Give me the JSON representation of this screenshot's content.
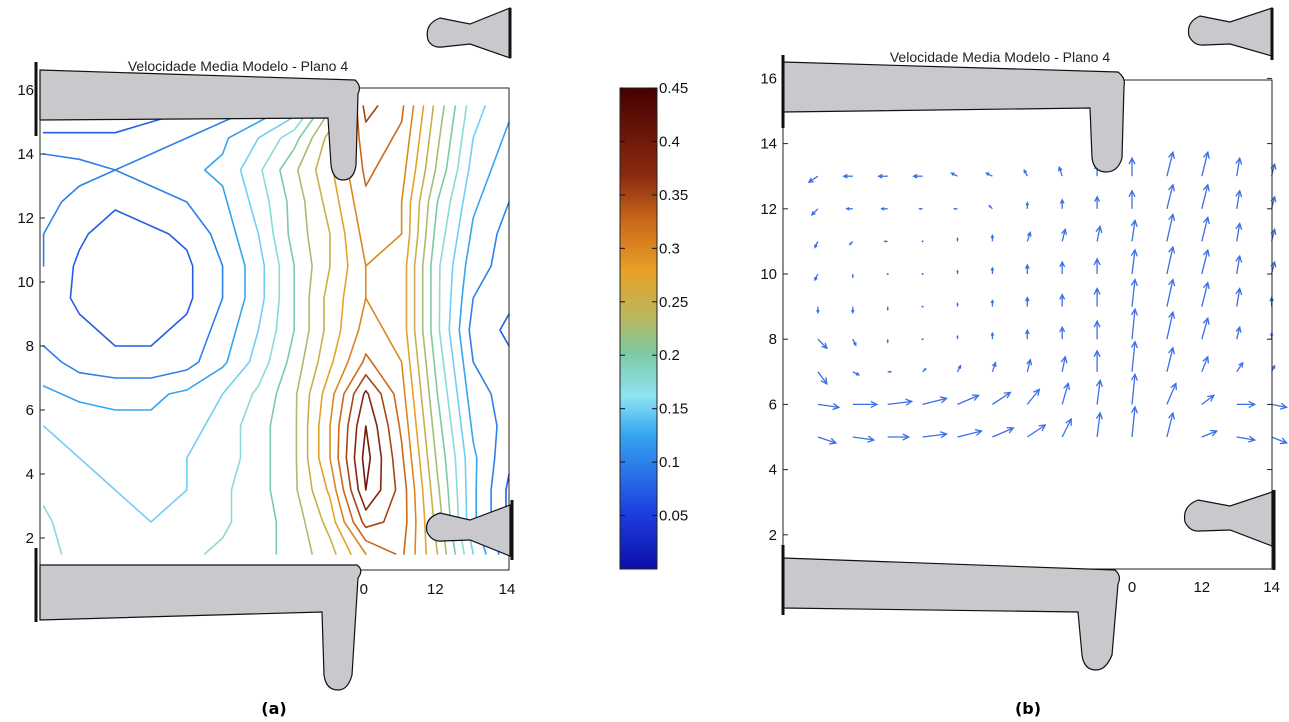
{
  "chart_data": [
    {
      "type": "contour",
      "panel_label": "(a)",
      "title": "Velocidade Media Modelo - Plano  4",
      "xlim": [
        0,
        14
      ],
      "ylim": [
        1,
        16
      ],
      "x_tick_labels": [
        "0",
        "12",
        "14"
      ],
      "y_tick_labels": [
        "2",
        "4",
        "6",
        "8",
        "10",
        "12",
        "14",
        "16"
      ],
      "colormap": "jet",
      "colorbar": {
        "range": [
          0,
          0.45
        ],
        "tick_labels": [
          "0.05",
          "0.1",
          "0.15",
          "0.2",
          "0.25",
          "0.3",
          "0.35",
          "0.4",
          "0.45"
        ]
      },
      "contour_levels": [
        0.05,
        0.075,
        0.1,
        0.125,
        0.15,
        0.175,
        0.2,
        0.225,
        0.25,
        0.275,
        0.3,
        0.325,
        0.35,
        0.375,
        0.4
      ],
      "field": {
        "x": [
          1,
          2,
          3,
          4,
          5,
          6,
          7,
          8,
          9,
          10,
          11,
          12,
          13,
          14
        ],
        "y": [
          1.5,
          2.5,
          3.5,
          4.5,
          5.5,
          6.5,
          7.5,
          8.5,
          9.5,
          10.5,
          11.5,
          12.5,
          13.5,
          14.5,
          15.5
        ],
        "z": [
          [
            0.18,
            0.17,
            0.16,
            0.16,
            0.17,
            0.18,
            0.19,
            0.21,
            0.24,
            0.3,
            0.33,
            0.25,
            0.15,
            0.08
          ],
          [
            0.18,
            0.16,
            0.15,
            0.15,
            0.16,
            0.17,
            0.19,
            0.21,
            0.26,
            0.36,
            0.34,
            0.24,
            0.13,
            0.07
          ],
          [
            0.17,
            0.16,
            0.15,
            0.14,
            0.15,
            0.17,
            0.19,
            0.22,
            0.28,
            0.4,
            0.34,
            0.23,
            0.13,
            0.07
          ],
          [
            0.16,
            0.15,
            0.14,
            0.14,
            0.15,
            0.16,
            0.19,
            0.22,
            0.3,
            0.41,
            0.33,
            0.22,
            0.13,
            0.08
          ],
          [
            0.15,
            0.14,
            0.13,
            0.13,
            0.14,
            0.16,
            0.19,
            0.22,
            0.3,
            0.4,
            0.32,
            0.21,
            0.12,
            0.09
          ],
          [
            0.13,
            0.12,
            0.12,
            0.12,
            0.13,
            0.15,
            0.18,
            0.22,
            0.29,
            0.38,
            0.31,
            0.2,
            0.11,
            0.09
          ],
          [
            0.11,
            0.09,
            0.08,
            0.08,
            0.09,
            0.12,
            0.16,
            0.21,
            0.27,
            0.33,
            0.3,
            0.19,
            0.1,
            0.08
          ],
          [
            0.09,
            0.08,
            0.07,
            0.07,
            0.08,
            0.11,
            0.15,
            0.2,
            0.26,
            0.31,
            0.29,
            0.18,
            0.09,
            0.07
          ],
          [
            0.09,
            0.07,
            0.06,
            0.06,
            0.07,
            0.1,
            0.14,
            0.2,
            0.26,
            0.3,
            0.29,
            0.18,
            0.1,
            0.08
          ],
          [
            0.1,
            0.07,
            0.06,
            0.06,
            0.07,
            0.1,
            0.14,
            0.2,
            0.25,
            0.3,
            0.29,
            0.18,
            0.11,
            0.09
          ],
          [
            0.1,
            0.08,
            0.06,
            0.07,
            0.08,
            0.11,
            0.15,
            0.21,
            0.25,
            0.31,
            0.3,
            0.19,
            0.12,
            0.09
          ],
          [
            0.11,
            0.09,
            0.08,
            0.09,
            0.1,
            0.12,
            0.16,
            0.21,
            0.26,
            0.32,
            0.3,
            0.2,
            0.13,
            0.1
          ],
          [
            0.12,
            0.11,
            0.1,
            0.11,
            0.12,
            0.13,
            0.17,
            0.22,
            0.27,
            0.33,
            0.31,
            0.22,
            0.14,
            0.11
          ],
          [
            0.08,
            0.08,
            0.08,
            0.09,
            0.1,
            0.12,
            0.15,
            0.19,
            0.26,
            0.34,
            0.32,
            0.23,
            0.15,
            0.12
          ],
          [
            0.05,
            0.05,
            0.05,
            0.06,
            0.07,
            0.08,
            0.1,
            0.13,
            0.22,
            0.36,
            0.33,
            0.24,
            0.16,
            0.13
          ]
        ]
      }
    },
    {
      "type": "quiver",
      "panel_label": "(b)",
      "title": "Velocidade Media Modelo - Plano  4",
      "xlim": [
        0,
        14
      ],
      "ylim": [
        1,
        16
      ],
      "x_tick_labels": [
        "0",
        "12",
        "14"
      ],
      "y_tick_labels": [
        "2",
        "4",
        "6",
        "8",
        "10",
        "12",
        "14",
        "16"
      ],
      "arrow_color": "#3a6fe6",
      "vectors": [
        {
          "x": 1,
          "y": 5,
          "u": 0.06,
          "v": -0.02
        },
        {
          "x": 2,
          "y": 5,
          "u": 0.07,
          "v": -0.01
        },
        {
          "x": 3,
          "y": 5,
          "u": 0.07,
          "v": 0.0
        },
        {
          "x": 4,
          "y": 5,
          "u": 0.08,
          "v": 0.01
        },
        {
          "x": 5,
          "y": 5,
          "u": 0.08,
          "v": 0.02
        },
        {
          "x": 6,
          "y": 5,
          "u": 0.07,
          "v": 0.03
        },
        {
          "x": 7,
          "y": 5,
          "u": 0.06,
          "v": 0.04
        },
        {
          "x": 8,
          "y": 5,
          "u": 0.03,
          "v": 0.06
        },
        {
          "x": 9,
          "y": 5,
          "u": 0.01,
          "v": 0.08
        },
        {
          "x": 10,
          "y": 5,
          "u": 0.01,
          "v": 0.1
        },
        {
          "x": 11,
          "y": 5,
          "u": 0.02,
          "v": 0.08
        },
        {
          "x": 12,
          "y": 5,
          "u": 0.05,
          "v": 0.02
        },
        {
          "x": 13,
          "y": 5,
          "u": 0.06,
          "v": -0.01
        },
        {
          "x": 14,
          "y": 5,
          "u": 0.05,
          "v": -0.02
        },
        {
          "x": 1,
          "y": 6,
          "u": 0.07,
          "v": -0.01
        },
        {
          "x": 2,
          "y": 6,
          "u": 0.08,
          "v": 0.0
        },
        {
          "x": 3,
          "y": 6,
          "u": 0.08,
          "v": 0.01
        },
        {
          "x": 4,
          "y": 6,
          "u": 0.08,
          "v": 0.02
        },
        {
          "x": 5,
          "y": 6,
          "u": 0.07,
          "v": 0.03
        },
        {
          "x": 6,
          "y": 6,
          "u": 0.06,
          "v": 0.04
        },
        {
          "x": 7,
          "y": 6,
          "u": 0.04,
          "v": 0.05
        },
        {
          "x": 8,
          "y": 6,
          "u": 0.02,
          "v": 0.07
        },
        {
          "x": 9,
          "y": 6,
          "u": 0.01,
          "v": 0.08
        },
        {
          "x": 10,
          "y": 6,
          "u": 0.01,
          "v": 0.1
        },
        {
          "x": 11,
          "y": 6,
          "u": 0.03,
          "v": 0.07
        },
        {
          "x": 12,
          "y": 6,
          "u": 0.04,
          "v": 0.03
        },
        {
          "x": 13,
          "y": 6,
          "u": 0.06,
          "v": 0.0
        },
        {
          "x": 14,
          "y": 6,
          "u": 0.05,
          "v": -0.01
        },
        {
          "x": 1,
          "y": 7,
          "u": 0.03,
          "v": -0.04
        },
        {
          "x": 2,
          "y": 7,
          "u": 0.02,
          "v": -0.01
        },
        {
          "x": 3,
          "y": 7,
          "u": 0.01,
          "v": 0.0
        },
        {
          "x": 4,
          "y": 7,
          "u": 0.01,
          "v": 0.01
        },
        {
          "x": 5,
          "y": 7,
          "u": 0.01,
          "v": 0.02
        },
        {
          "x": 6,
          "y": 7,
          "u": 0.01,
          "v": 0.03
        },
        {
          "x": 7,
          "y": 7,
          "u": 0.01,
          "v": 0.04
        },
        {
          "x": 8,
          "y": 7,
          "u": 0.01,
          "v": 0.05
        },
        {
          "x": 9,
          "y": 7,
          "u": 0.0,
          "v": 0.07
        },
        {
          "x": 10,
          "y": 7,
          "u": 0.01,
          "v": 0.1
        },
        {
          "x": 11,
          "y": 7,
          "u": 0.02,
          "v": 0.08
        },
        {
          "x": 12,
          "y": 7,
          "u": 0.02,
          "v": 0.05
        },
        {
          "x": 13,
          "y": 7,
          "u": 0.02,
          "v": 0.03
        },
        {
          "x": 14,
          "y": 7,
          "u": 0.01,
          "v": 0.02
        },
        {
          "x": 1,
          "y": 8,
          "u": 0.03,
          "v": -0.03
        },
        {
          "x": 2,
          "y": 8,
          "u": 0.01,
          "v": -0.02
        },
        {
          "x": 3,
          "y": 8,
          "u": 0.0,
          "v": -0.01
        },
        {
          "x": 4,
          "y": 8,
          "u": 0.0,
          "v": 0.0
        },
        {
          "x": 5,
          "y": 8,
          "u": 0.0,
          "v": 0.01
        },
        {
          "x": 6,
          "y": 8,
          "u": 0.0,
          "v": 0.02
        },
        {
          "x": 7,
          "y": 8,
          "u": 0.0,
          "v": 0.03
        },
        {
          "x": 8,
          "y": 8,
          "u": 0.0,
          "v": 0.04
        },
        {
          "x": 9,
          "y": 8,
          "u": 0.0,
          "v": 0.06
        },
        {
          "x": 10,
          "y": 8,
          "u": 0.01,
          "v": 0.1
        },
        {
          "x": 11,
          "y": 8,
          "u": 0.02,
          "v": 0.09
        },
        {
          "x": 12,
          "y": 8,
          "u": 0.02,
          "v": 0.07
        },
        {
          "x": 13,
          "y": 8,
          "u": 0.01,
          "v": 0.04
        },
        {
          "x": 14,
          "y": 8,
          "u": 0.0,
          "v": 0.02
        },
        {
          "x": 1,
          "y": 9,
          "u": 0.0,
          "v": -0.02
        },
        {
          "x": 2,
          "y": 9,
          "u": 0.0,
          "v": -0.02
        },
        {
          "x": 3,
          "y": 9,
          "u": 0.0,
          "v": -0.01
        },
        {
          "x": 4,
          "y": 9,
          "u": 0.0,
          "v": 0.0
        },
        {
          "x": 5,
          "y": 9,
          "u": 0.0,
          "v": 0.01
        },
        {
          "x": 6,
          "y": 9,
          "u": 0.0,
          "v": 0.02
        },
        {
          "x": 7,
          "y": 9,
          "u": 0.0,
          "v": 0.03
        },
        {
          "x": 8,
          "y": 9,
          "u": 0.0,
          "v": 0.04
        },
        {
          "x": 9,
          "y": 9,
          "u": 0.0,
          "v": 0.06
        },
        {
          "x": 10,
          "y": 9,
          "u": 0.01,
          "v": 0.09
        },
        {
          "x": 11,
          "y": 9,
          "u": 0.02,
          "v": 0.09
        },
        {
          "x": 12,
          "y": 9,
          "u": 0.02,
          "v": 0.08
        },
        {
          "x": 13,
          "y": 9,
          "u": 0.01,
          "v": 0.06
        },
        {
          "x": 14,
          "y": 9,
          "u": 0.0,
          "v": 0.03
        },
        {
          "x": 1,
          "y": 10,
          "u": -0.01,
          "v": -0.02
        },
        {
          "x": 2,
          "y": 10,
          "u": 0.0,
          "v": -0.01
        },
        {
          "x": 3,
          "y": 10,
          "u": 0.0,
          "v": 0.0
        },
        {
          "x": 4,
          "y": 10,
          "u": 0.0,
          "v": 0.0
        },
        {
          "x": 5,
          "y": 10,
          "u": 0.0,
          "v": 0.01
        },
        {
          "x": 6,
          "y": 10,
          "u": 0.0,
          "v": 0.02
        },
        {
          "x": 7,
          "y": 10,
          "u": 0.0,
          "v": 0.03
        },
        {
          "x": 8,
          "y": 10,
          "u": 0.0,
          "v": 0.04
        },
        {
          "x": 9,
          "y": 10,
          "u": 0.0,
          "v": 0.05
        },
        {
          "x": 10,
          "y": 10,
          "u": 0.01,
          "v": 0.08
        },
        {
          "x": 11,
          "y": 10,
          "u": 0.02,
          "v": 0.09
        },
        {
          "x": 12,
          "y": 10,
          "u": 0.02,
          "v": 0.08
        },
        {
          "x": 13,
          "y": 10,
          "u": 0.01,
          "v": 0.06
        },
        {
          "x": 14,
          "y": 10,
          "u": 0.01,
          "v": 0.04
        },
        {
          "x": 1,
          "y": 11,
          "u": -0.01,
          "v": -0.02
        },
        {
          "x": 2,
          "y": 11,
          "u": -0.01,
          "v": -0.01
        },
        {
          "x": 3,
          "y": 11,
          "u": -0.01,
          "v": 0.0
        },
        {
          "x": 4,
          "y": 11,
          "u": 0.0,
          "v": 0.0
        },
        {
          "x": 5,
          "y": 11,
          "u": 0.0,
          "v": 0.01
        },
        {
          "x": 6,
          "y": 11,
          "u": 0.0,
          "v": 0.02
        },
        {
          "x": 7,
          "y": 11,
          "u": 0.01,
          "v": 0.03
        },
        {
          "x": 8,
          "y": 11,
          "u": 0.01,
          "v": 0.04
        },
        {
          "x": 9,
          "y": 11,
          "u": 0.01,
          "v": 0.05
        },
        {
          "x": 10,
          "y": 11,
          "u": 0.01,
          "v": 0.07
        },
        {
          "x": 11,
          "y": 11,
          "u": 0.02,
          "v": 0.09
        },
        {
          "x": 12,
          "y": 11,
          "u": 0.02,
          "v": 0.08
        },
        {
          "x": 13,
          "y": 11,
          "u": 0.01,
          "v": 0.06
        },
        {
          "x": 14,
          "y": 11,
          "u": 0.01,
          "v": 0.04
        },
        {
          "x": 1,
          "y": 12,
          "u": -0.02,
          "v": -0.02
        },
        {
          "x": 2,
          "y": 12,
          "u": -0.02,
          "v": 0.0
        },
        {
          "x": 3,
          "y": 12,
          "u": -0.02,
          "v": 0.0
        },
        {
          "x": 4,
          "y": 12,
          "u": -0.01,
          "v": 0.0
        },
        {
          "x": 5,
          "y": 12,
          "u": -0.01,
          "v": 0.0
        },
        {
          "x": 6,
          "y": 12,
          "u": -0.01,
          "v": 0.01
        },
        {
          "x": 7,
          "y": 12,
          "u": 0.0,
          "v": 0.02
        },
        {
          "x": 8,
          "y": 12,
          "u": 0.0,
          "v": 0.03
        },
        {
          "x": 9,
          "y": 12,
          "u": 0.0,
          "v": 0.04
        },
        {
          "x": 10,
          "y": 12,
          "u": 0.0,
          "v": 0.06
        },
        {
          "x": 11,
          "y": 12,
          "u": 0.02,
          "v": 0.08
        },
        {
          "x": 12,
          "y": 12,
          "u": 0.02,
          "v": 0.08
        },
        {
          "x": 13,
          "y": 12,
          "u": 0.01,
          "v": 0.06
        },
        {
          "x": 14,
          "y": 12,
          "u": 0.01,
          "v": 0.04
        },
        {
          "x": 1,
          "y": 13,
          "u": -0.03,
          "v": -0.02
        },
        {
          "x": 2,
          "y": 13,
          "u": -0.03,
          "v": 0.0
        },
        {
          "x": 3,
          "y": 13,
          "u": -0.03,
          "v": 0.0
        },
        {
          "x": 4,
          "y": 13,
          "u": -0.03,
          "v": 0.0
        },
        {
          "x": 5,
          "y": 13,
          "u": -0.02,
          "v": 0.01
        },
        {
          "x": 6,
          "y": 13,
          "u": -0.02,
          "v": 0.01
        },
        {
          "x": 7,
          "y": 13,
          "u": -0.01,
          "v": 0.02
        },
        {
          "x": 8,
          "y": 13,
          "u": -0.01,
          "v": 0.03
        },
        {
          "x": 9,
          "y": 13,
          "u": 0.0,
          "v": 0.04
        },
        {
          "x": 10,
          "y": 13,
          "u": 0.0,
          "v": 0.06
        },
        {
          "x": 11,
          "y": 13,
          "u": 0.02,
          "v": 0.08
        },
        {
          "x": 12,
          "y": 13,
          "u": 0.02,
          "v": 0.08
        },
        {
          "x": 13,
          "y": 13,
          "u": 0.01,
          "v": 0.06
        },
        {
          "x": 14,
          "y": 13,
          "u": 0.01,
          "v": 0.04
        }
      ]
    }
  ]
}
